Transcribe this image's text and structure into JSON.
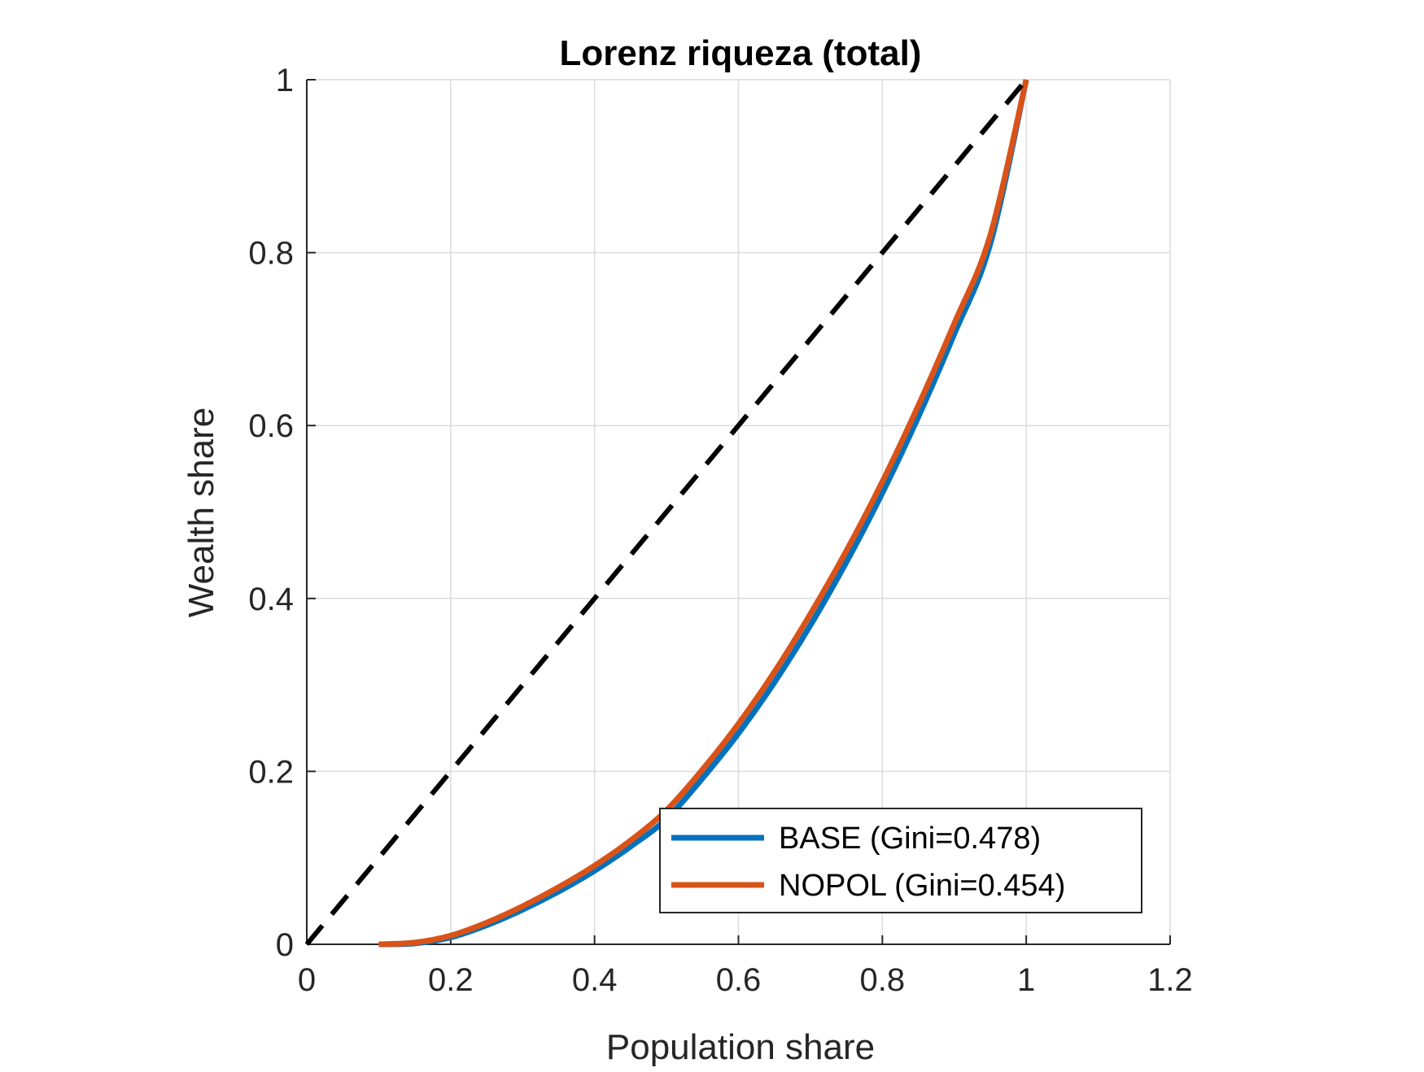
{
  "chart_data": {
    "type": "line",
    "title": "Lorenz riqueza (total)",
    "xlabel": "Population share",
    "ylabel": "Wealth share",
    "xlim": [
      0,
      1.2
    ],
    "ylim": [
      0,
      1
    ],
    "xticks": [
      0,
      0.2,
      0.4,
      0.6,
      0.8,
      1,
      1.2
    ],
    "xtick_labels": [
      "0",
      "0.2",
      "0.4",
      "0.6",
      "0.8",
      "1",
      "1.2"
    ],
    "yticks": [
      0,
      0.2,
      0.4,
      0.6,
      0.8,
      1
    ],
    "ytick_labels": [
      "0",
      "0.2",
      "0.4",
      "0.6",
      "0.8",
      "1"
    ],
    "grid": true,
    "legend_position": "bottom-right",
    "equality_line": {
      "x": [
        0,
        1
      ],
      "y": [
        0,
        1
      ],
      "color": "#000000",
      "style": "dashed"
    },
    "series": [
      {
        "name": "BASE  (Gini=0.478)",
        "color": "#0072BD",
        "x": [
          0.1,
          0.15,
          0.2,
          0.25,
          0.3,
          0.35,
          0.4,
          0.45,
          0.5,
          0.55,
          0.6,
          0.65,
          0.7,
          0.75,
          0.8,
          0.85,
          0.9,
          0.95,
          1.0
        ],
        "y": [
          0.0,
          0.001,
          0.008,
          0.022,
          0.04,
          0.061,
          0.085,
          0.113,
          0.145,
          0.192,
          0.244,
          0.303,
          0.369,
          0.442,
          0.522,
          0.61,
          0.706,
          0.81,
          1.0
        ]
      },
      {
        "name": "NOPOL  (Gini=0.454)",
        "color": "#D95319",
        "x": [
          0.1,
          0.15,
          0.2,
          0.25,
          0.3,
          0.35,
          0.4,
          0.45,
          0.5,
          0.55,
          0.6,
          0.65,
          0.7,
          0.75,
          0.8,
          0.85,
          0.9,
          0.95,
          1.0
        ],
        "y": [
          0.0,
          0.002,
          0.01,
          0.025,
          0.044,
          0.066,
          0.091,
          0.12,
          0.155,
          0.202,
          0.255,
          0.315,
          0.382,
          0.455,
          0.535,
          0.623,
          0.718,
          0.82,
          1.0
        ]
      }
    ]
  }
}
